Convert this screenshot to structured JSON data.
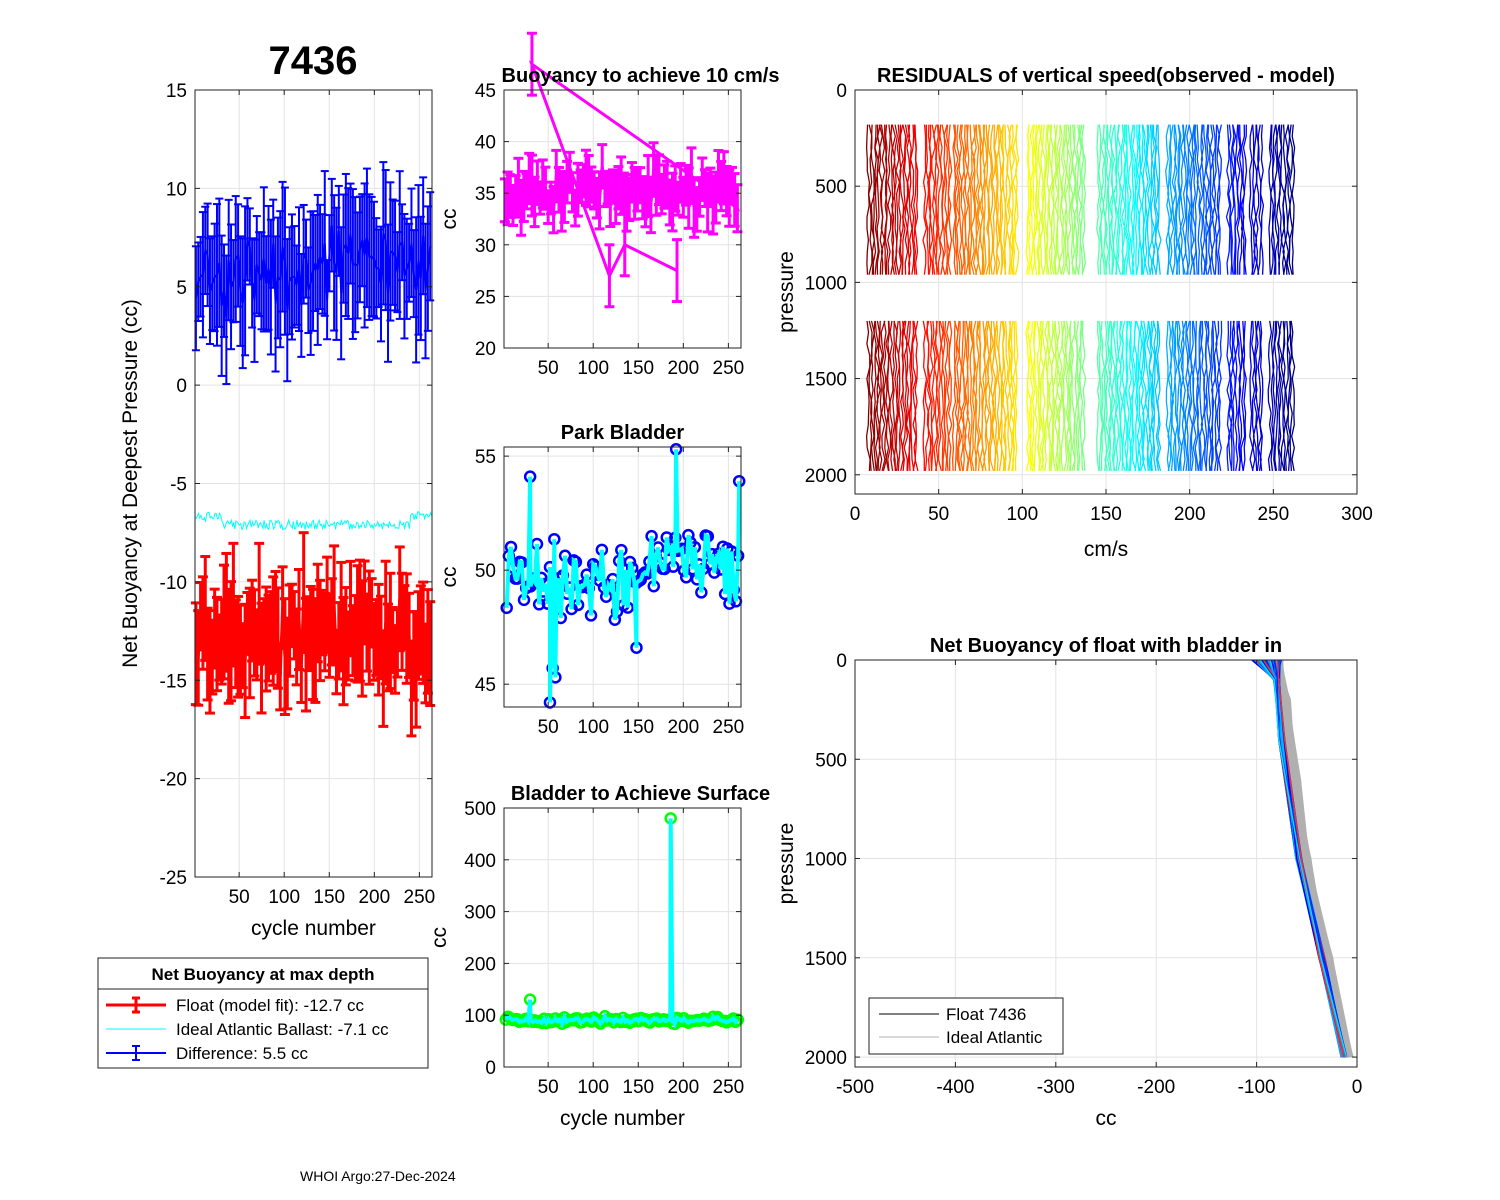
{
  "figure_title": "7436",
  "footer": "WHOI Argo:27-Dec-2024",
  "legend_main": {
    "title": "Net Buoyancy at max depth",
    "entries": [
      "Float (model fit): -12.7 cc",
      "Ideal Atlantic Ballast:  -7.1 cc",
      "Difference:   5.5 cc"
    ]
  },
  "legend_profile": {
    "entries": [
      "Float 7436",
      "Ideal Atlantic"
    ]
  },
  "colors": {
    "float": "#ff0000",
    "ideal": "#00ffff",
    "difference": "#0000ff",
    "bladder_marker": "#0000ff",
    "bladder_line": "#00ffff",
    "surface_marker": "#00ff00",
    "buoyancy": "#ff00ff",
    "ideal_profile": "#b0b0b0"
  },
  "chart_data": [
    {
      "id": "main",
      "type": "line",
      "title": "",
      "xlabel": "cycle number",
      "ylabel": "Net Buoyancy at Deepest Pressure (cc)",
      "xlim": [
        1,
        264
      ],
      "ylim": [
        -25,
        15
      ],
      "xticks": [
        50,
        100,
        150,
        200,
        250
      ],
      "yticks": [
        -25,
        -20,
        -15,
        -10,
        -5,
        0,
        5,
        10,
        15
      ],
      "series": [
        {
          "name": "Float (model fit)",
          "mean": -12.7,
          "spread": 1.8,
          "err": 2.6,
          "band": [
            -16,
            -8
          ]
        },
        {
          "name": "Ideal Atlantic Ballast",
          "mean": -7.1,
          "spread": 0.25
        },
        {
          "name": "Difference",
          "mean": 5.5,
          "spread": 1.8,
          "err": 3.2,
          "band": [
            1,
            10
          ]
        }
      ]
    },
    {
      "id": "buoy10",
      "type": "line",
      "title": "Buoyancy to achieve 10 cm/s",
      "xlabel": "",
      "ylabel": "cc",
      "xlim": [
        1,
        264
      ],
      "ylim": [
        20,
        45
      ],
      "xticks": [
        50,
        100,
        150,
        200,
        250
      ],
      "yticks": [
        20,
        25,
        30,
        35,
        40,
        45
      ],
      "series": [
        {
          "name": "buoyancy",
          "mean": 35,
          "spread": 1.8,
          "err": 3.0,
          "outliers": [
            [
              32,
              44.5
            ],
            [
              118,
              24
            ],
            [
              135,
              27
            ],
            [
              193,
              24.5
            ]
          ]
        }
      ]
    },
    {
      "id": "park",
      "type": "line",
      "title": "Park Bladder",
      "xlabel": "",
      "ylabel": "cc",
      "xlim": [
        1,
        264
      ],
      "ylim": [
        44,
        55.4
      ],
      "xticks": [
        50,
        100,
        150,
        200,
        250
      ],
      "yticks": [
        45,
        50,
        55
      ],
      "series": [
        {
          "name": "park bladder",
          "values_range": [
            44.2,
            55.3
          ],
          "points": [
            [
              30,
              54.1
            ],
            [
              52,
              44.2
            ],
            [
              55,
              45.7
            ],
            [
              58,
              45.3
            ],
            [
              192,
              55.3
            ],
            [
              148,
              46.6
            ],
            [
              262,
              53.9
            ]
          ]
        }
      ]
    },
    {
      "id": "surface",
      "type": "line",
      "title": "Bladder to Achieve Surface",
      "xlabel": "cycle number",
      "ylabel": "cc",
      "xlim": [
        1,
        264
      ],
      "ylim": [
        0,
        500
      ],
      "xticks": [
        50,
        100,
        150,
        200,
        250
      ],
      "yticks": [
        0,
        100,
        200,
        300,
        400,
        500
      ],
      "series": [
        {
          "name": "surface bladder",
          "baseline": 90,
          "peaks": [
            [
              30,
              130
            ],
            [
              186,
              480
            ]
          ]
        }
      ]
    },
    {
      "id": "residuals",
      "type": "line",
      "title": "RESIDUALS of vertical speed(observed - model)",
      "xlabel": "cm/s",
      "ylabel": "pressure",
      "xlim": [
        0,
        300
      ],
      "ylim": [
        0,
        2100
      ],
      "xticks": [
        0,
        50,
        100,
        150,
        200,
        250,
        300
      ],
      "yticks": [
        0,
        500,
        1000,
        1500,
        2000
      ],
      "segments": [
        [
          180,
          1010
        ],
        [
          1200,
          2000
        ]
      ],
      "profile_x_range": [
        8,
        262
      ],
      "colormap": "jet"
    },
    {
      "id": "netbuoy",
      "type": "line",
      "title": "Net Buoyancy of float with bladder in",
      "xlabel": "cc",
      "ylabel": "pressure",
      "xlim": [
        -500,
        0
      ],
      "ylim": [
        0,
        2050
      ],
      "xticks": [
        -500,
        -400,
        -300,
        -200,
        -100,
        0
      ],
      "yticks": [
        0,
        500,
        1000,
        1500,
        2000
      ],
      "series": [
        {
          "name": "Float 7436",
          "points": [
            [
              -90,
              0
            ],
            [
              -80,
              100
            ],
            [
              -75,
              400
            ],
            [
              -58,
              1000
            ],
            [
              -35,
              1500
            ],
            [
              -13,
              2000
            ]
          ]
        },
        {
          "name": "Ideal Atlantic",
          "points": [
            [
              -80,
              0
            ],
            [
              -72,
              200
            ],
            [
              -62,
              600
            ],
            [
              -52,
              1000
            ],
            [
              -30,
              1500
            ],
            [
              -10,
              2000
            ]
          ]
        }
      ]
    }
  ]
}
